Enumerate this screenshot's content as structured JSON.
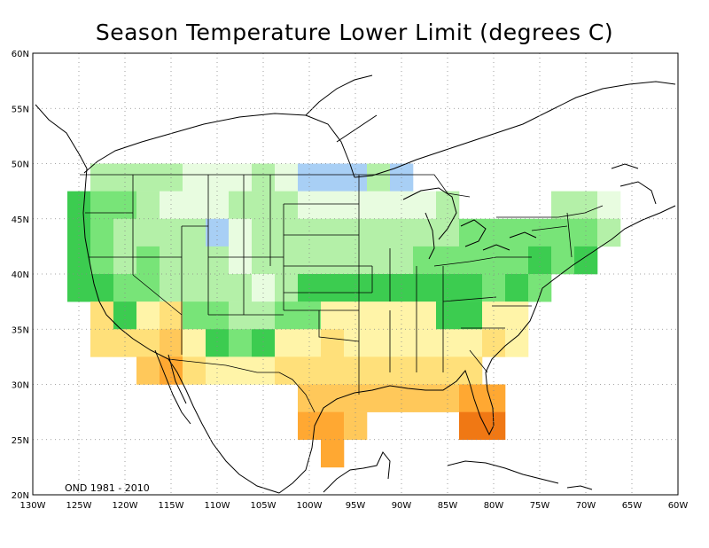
{
  "title": "Season Temperature Lower Limit (degrees C)",
  "period_label": "OND 1981 - 2010",
  "lon_labels": [
    "130W",
    "125W",
    "120W",
    "115W",
    "110W",
    "105W",
    "100W",
    "95W",
    "90W",
    "85W",
    "80W",
    "75W",
    "70W",
    "65W",
    "60W"
  ],
  "lat_labels": [
    "20N",
    "25N",
    "30N",
    "35N",
    "40N",
    "45N",
    "50N",
    "55N",
    "60N"
  ],
  "map_extent": {
    "lon_min": -130,
    "lon_max": -60,
    "lat_min": 20,
    "lat_max": 60
  },
  "grid_resolution_deg": 2.5,
  "colors": {
    "light_blue": "#a8cff5",
    "pale_green": "#e8fce0",
    "light_green": "#b4f0a8",
    "medium_green": "#78e478",
    "green": "#3ccc50",
    "light_yellow": "#fff4a8",
    "yellow": "#ffe07a",
    "light_orange": "#ffc85a",
    "orange": "#ffa832",
    "dark_orange": "#f07814"
  },
  "chart_data": {
    "type": "heatmap",
    "title": "Season Temperature Lower Limit (degrees C)",
    "annotation": "OND 1981 - 2010",
    "cell_size_deg": 2.5,
    "cells": [
      {
        "lon": -125.0,
        "lat": 46.25,
        "c": "green"
      },
      {
        "lon": -125.0,
        "lat": 43.75,
        "c": "green"
      },
      {
        "lon": -125.0,
        "lat": 41.25,
        "c": "green"
      },
      {
        "lon": -125.0,
        "lat": 38.75,
        "c": "green"
      },
      {
        "lon": -122.5,
        "lat": 48.75,
        "c": "light_green"
      },
      {
        "lon": -122.5,
        "lat": 46.25,
        "c": "medium_green"
      },
      {
        "lon": -122.5,
        "lat": 43.75,
        "c": "medium_green"
      },
      {
        "lon": -122.5,
        "lat": 41.25,
        "c": "medium_green"
      },
      {
        "lon": -122.5,
        "lat": 38.75,
        "c": "green"
      },
      {
        "lon": -122.5,
        "lat": 36.25,
        "c": "yellow"
      },
      {
        "lon": -122.5,
        "lat": 33.75,
        "c": "yellow"
      },
      {
        "lon": -120.0,
        "lat": 48.75,
        "c": "light_green"
      },
      {
        "lon": -120.0,
        "lat": 46.25,
        "c": "medium_green"
      },
      {
        "lon": -120.0,
        "lat": 43.75,
        "c": "light_green"
      },
      {
        "lon": -120.0,
        "lat": 41.25,
        "c": "light_green"
      },
      {
        "lon": -120.0,
        "lat": 38.75,
        "c": "medium_green"
      },
      {
        "lon": -120.0,
        "lat": 36.25,
        "c": "green"
      },
      {
        "lon": -120.0,
        "lat": 33.75,
        "c": "yellow"
      },
      {
        "lon": -117.5,
        "lat": 48.75,
        "c": "light_green"
      },
      {
        "lon": -117.5,
        "lat": 46.25,
        "c": "light_green"
      },
      {
        "lon": -117.5,
        "lat": 43.75,
        "c": "light_green"
      },
      {
        "lon": -117.5,
        "lat": 41.25,
        "c": "medium_green"
      },
      {
        "lon": -117.5,
        "lat": 38.75,
        "c": "medium_green"
      },
      {
        "lon": -117.5,
        "lat": 36.25,
        "c": "light_yellow"
      },
      {
        "lon": -117.5,
        "lat": 33.75,
        "c": "yellow"
      },
      {
        "lon": -117.5,
        "lat": 31.25,
        "c": "light_orange"
      },
      {
        "lon": -115.0,
        "lat": 48.75,
        "c": "light_green"
      },
      {
        "lon": -115.0,
        "lat": 46.25,
        "c": "pale_green"
      },
      {
        "lon": -115.0,
        "lat": 43.75,
        "c": "light_green"
      },
      {
        "lon": -115.0,
        "lat": 41.25,
        "c": "light_green"
      },
      {
        "lon": -115.0,
        "lat": 38.75,
        "c": "light_green"
      },
      {
        "lon": -115.0,
        "lat": 36.25,
        "c": "yellow"
      },
      {
        "lon": -115.0,
        "lat": 33.75,
        "c": "light_orange"
      },
      {
        "lon": -115.0,
        "lat": 31.25,
        "c": "orange"
      },
      {
        "lon": -112.5,
        "lat": 48.75,
        "c": "pale_green"
      },
      {
        "lon": -112.5,
        "lat": 46.25,
        "c": "pale_green"
      },
      {
        "lon": -112.5,
        "lat": 43.75,
        "c": "light_green"
      },
      {
        "lon": -112.5,
        "lat": 41.25,
        "c": "light_green"
      },
      {
        "lon": -112.5,
        "lat": 38.75,
        "c": "light_green"
      },
      {
        "lon": -112.5,
        "lat": 36.25,
        "c": "medium_green"
      },
      {
        "lon": -112.5,
        "lat": 33.75,
        "c": "light_yellow"
      },
      {
        "lon": -112.5,
        "lat": 31.25,
        "c": "yellow"
      },
      {
        "lon": -110.0,
        "lat": 48.75,
        "c": "pale_green"
      },
      {
        "lon": -110.0,
        "lat": 46.25,
        "c": "pale_green"
      },
      {
        "lon": -110.0,
        "lat": 43.75,
        "c": "light_blue"
      },
      {
        "lon": -110.0,
        "lat": 41.25,
        "c": "light_green"
      },
      {
        "lon": -110.0,
        "lat": 38.75,
        "c": "light_green"
      },
      {
        "lon": -110.0,
        "lat": 36.25,
        "c": "medium_green"
      },
      {
        "lon": -110.0,
        "lat": 33.75,
        "c": "green"
      },
      {
        "lon": -110.0,
        "lat": 31.25,
        "c": "light_yellow"
      },
      {
        "lon": -107.5,
        "lat": 48.75,
        "c": "pale_green"
      },
      {
        "lon": -107.5,
        "lat": 46.25,
        "c": "light_green"
      },
      {
        "lon": -107.5,
        "lat": 43.75,
        "c": "pale_green"
      },
      {
        "lon": -107.5,
        "lat": 41.25,
        "c": "pale_green"
      },
      {
        "lon": -107.5,
        "lat": 38.75,
        "c": "light_green"
      },
      {
        "lon": -107.5,
        "lat": 36.25,
        "c": "light_green"
      },
      {
        "lon": -107.5,
        "lat": 33.75,
        "c": "medium_green"
      },
      {
        "lon": -107.5,
        "lat": 31.25,
        "c": "light_yellow"
      },
      {
        "lon": -105.0,
        "lat": 48.75,
        "c": "light_green"
      },
      {
        "lon": -105.0,
        "lat": 46.25,
        "c": "light_green"
      },
      {
        "lon": -105.0,
        "lat": 43.75,
        "c": "light_green"
      },
      {
        "lon": -105.0,
        "lat": 41.25,
        "c": "light_green"
      },
      {
        "lon": -105.0,
        "lat": 38.75,
        "c": "pale_green"
      },
      {
        "lon": -105.0,
        "lat": 36.25,
        "c": "light_green"
      },
      {
        "lon": -105.0,
        "lat": 33.75,
        "c": "green"
      },
      {
        "lon": -105.0,
        "lat": 31.25,
        "c": "light_yellow"
      },
      {
        "lon": -102.5,
        "lat": 48.75,
        "c": "pale_green"
      },
      {
        "lon": -102.5,
        "lat": 46.25,
        "c": "light_green"
      },
      {
        "lon": -102.5,
        "lat": 43.75,
        "c": "light_green"
      },
      {
        "lon": -102.5,
        "lat": 41.25,
        "c": "light_green"
      },
      {
        "lon": -102.5,
        "lat": 38.75,
        "c": "light_green"
      },
      {
        "lon": -102.5,
        "lat": 36.25,
        "c": "medium_green"
      },
      {
        "lon": -102.5,
        "lat": 33.75,
        "c": "light_yellow"
      },
      {
        "lon": -102.5,
        "lat": 31.25,
        "c": "yellow"
      },
      {
        "lon": -100.0,
        "lat": 48.75,
        "c": "light_blue"
      },
      {
        "lon": -100.0,
        "lat": 46.25,
        "c": "pale_green"
      },
      {
        "lon": -100.0,
        "lat": 43.75,
        "c": "light_green"
      },
      {
        "lon": -100.0,
        "lat": 41.25,
        "c": "light_green"
      },
      {
        "lon": -100.0,
        "lat": 38.75,
        "c": "green"
      },
      {
        "lon": -100.0,
        "lat": 36.25,
        "c": "medium_green"
      },
      {
        "lon": -100.0,
        "lat": 33.75,
        "c": "light_yellow"
      },
      {
        "lon": -100.0,
        "lat": 31.25,
        "c": "yellow"
      },
      {
        "lon": -100.0,
        "lat": 28.75,
        "c": "light_orange"
      },
      {
        "lon": -100.0,
        "lat": 26.25,
        "c": "orange"
      },
      {
        "lon": -97.5,
        "lat": 48.75,
        "c": "light_blue"
      },
      {
        "lon": -97.5,
        "lat": 46.25,
        "c": "pale_green"
      },
      {
        "lon": -97.5,
        "lat": 43.75,
        "c": "light_green"
      },
      {
        "lon": -97.5,
        "lat": 41.25,
        "c": "light_green"
      },
      {
        "lon": -97.5,
        "lat": 38.75,
        "c": "green"
      },
      {
        "lon": -97.5,
        "lat": 36.25,
        "c": "light_yellow"
      },
      {
        "lon": -97.5,
        "lat": 33.75,
        "c": "yellow"
      },
      {
        "lon": -97.5,
        "lat": 31.25,
        "c": "yellow"
      },
      {
        "lon": -97.5,
        "lat": 28.75,
        "c": "light_orange"
      },
      {
        "lon": -97.5,
        "lat": 26.25,
        "c": "orange"
      },
      {
        "lon": -97.5,
        "lat": 23.75,
        "c": "orange"
      },
      {
        "lon": -95.0,
        "lat": 48.75,
        "c": "light_blue"
      },
      {
        "lon": -95.0,
        "lat": 46.25,
        "c": "pale_green"
      },
      {
        "lon": -95.0,
        "lat": 43.75,
        "c": "light_green"
      },
      {
        "lon": -95.0,
        "lat": 41.25,
        "c": "light_green"
      },
      {
        "lon": -95.0,
        "lat": 38.75,
        "c": "green"
      },
      {
        "lon": -95.0,
        "lat": 36.25,
        "c": "light_yellow"
      },
      {
        "lon": -95.0,
        "lat": 33.75,
        "c": "light_yellow"
      },
      {
        "lon": -95.0,
        "lat": 31.25,
        "c": "yellow"
      },
      {
        "lon": -95.0,
        "lat": 28.75,
        "c": "light_orange"
      },
      {
        "lon": -95.0,
        "lat": 26.25,
        "c": "light_orange"
      },
      {
        "lon": -92.5,
        "lat": 48.75,
        "c": "light_green"
      },
      {
        "lon": -92.5,
        "lat": 46.25,
        "c": "pale_green"
      },
      {
        "lon": -92.5,
        "lat": 43.75,
        "c": "light_green"
      },
      {
        "lon": -92.5,
        "lat": 41.25,
        "c": "light_green"
      },
      {
        "lon": -92.5,
        "lat": 38.75,
        "c": "green"
      },
      {
        "lon": -92.5,
        "lat": 36.25,
        "c": "light_yellow"
      },
      {
        "lon": -92.5,
        "lat": 33.75,
        "c": "light_yellow"
      },
      {
        "lon": -92.5,
        "lat": 31.25,
        "c": "yellow"
      },
      {
        "lon": -92.5,
        "lat": 28.75,
        "c": "light_orange"
      },
      {
        "lon": -90.0,
        "lat": 48.75,
        "c": "light_blue"
      },
      {
        "lon": -90.0,
        "lat": 46.25,
        "c": "pale_green"
      },
      {
        "lon": -90.0,
        "lat": 43.75,
        "c": "light_green"
      },
      {
        "lon": -90.0,
        "lat": 41.25,
        "c": "light_green"
      },
      {
        "lon": -90.0,
        "lat": 38.75,
        "c": "green"
      },
      {
        "lon": -90.0,
        "lat": 36.25,
        "c": "light_yellow"
      },
      {
        "lon": -90.0,
        "lat": 33.75,
        "c": "light_yellow"
      },
      {
        "lon": -90.0,
        "lat": 31.25,
        "c": "yellow"
      },
      {
        "lon": -90.0,
        "lat": 28.75,
        "c": "light_orange"
      },
      {
        "lon": -87.5,
        "lat": 46.25,
        "c": "pale_green"
      },
      {
        "lon": -87.5,
        "lat": 43.75,
        "c": "light_green"
      },
      {
        "lon": -87.5,
        "lat": 41.25,
        "c": "medium_green"
      },
      {
        "lon": -87.5,
        "lat": 38.75,
        "c": "green"
      },
      {
        "lon": -87.5,
        "lat": 36.25,
        "c": "light_yellow"
      },
      {
        "lon": -87.5,
        "lat": 33.75,
        "c": "light_yellow"
      },
      {
        "lon": -87.5,
        "lat": 31.25,
        "c": "yellow"
      },
      {
        "lon": -87.5,
        "lat": 28.75,
        "c": "light_orange"
      },
      {
        "lon": -85.0,
        "lat": 46.25,
        "c": "light_green"
      },
      {
        "lon": -85.0,
        "lat": 43.75,
        "c": "light_green"
      },
      {
        "lon": -85.0,
        "lat": 41.25,
        "c": "medium_green"
      },
      {
        "lon": -85.0,
        "lat": 38.75,
        "c": "green"
      },
      {
        "lon": -85.0,
        "lat": 36.25,
        "c": "green"
      },
      {
        "lon": -85.0,
        "lat": 33.75,
        "c": "light_yellow"
      },
      {
        "lon": -85.0,
        "lat": 31.25,
        "c": "yellow"
      },
      {
        "lon": -85.0,
        "lat": 28.75,
        "c": "light_orange"
      },
      {
        "lon": -82.5,
        "lat": 43.75,
        "c": "medium_green"
      },
      {
        "lon": -82.5,
        "lat": 41.25,
        "c": "medium_green"
      },
      {
        "lon": -82.5,
        "lat": 38.75,
        "c": "green"
      },
      {
        "lon": -82.5,
        "lat": 36.25,
        "c": "green"
      },
      {
        "lon": -82.5,
        "lat": 33.75,
        "c": "light_yellow"
      },
      {
        "lon": -82.5,
        "lat": 31.25,
        "c": "yellow"
      },
      {
        "lon": -82.5,
        "lat": 28.75,
        "c": "orange"
      },
      {
        "lon": -82.5,
        "lat": 26.25,
        "c": "dark_orange"
      },
      {
        "lon": -80.0,
        "lat": 43.75,
        "c": "medium_green"
      },
      {
        "lon": -80.0,
        "lat": 41.25,
        "c": "medium_green"
      },
      {
        "lon": -80.0,
        "lat": 38.75,
        "c": "medium_green"
      },
      {
        "lon": -80.0,
        "lat": 36.25,
        "c": "light_yellow"
      },
      {
        "lon": -80.0,
        "lat": 33.75,
        "c": "yellow"
      },
      {
        "lon": -80.0,
        "lat": 28.75,
        "c": "orange"
      },
      {
        "lon": -80.0,
        "lat": 26.25,
        "c": "dark_orange"
      },
      {
        "lon": -77.5,
        "lat": 43.75,
        "c": "medium_green"
      },
      {
        "lon": -77.5,
        "lat": 41.25,
        "c": "medium_green"
      },
      {
        "lon": -77.5,
        "lat": 38.75,
        "c": "green"
      },
      {
        "lon": -77.5,
        "lat": 36.25,
        "c": "light_yellow"
      },
      {
        "lon": -77.5,
        "lat": 33.75,
        "c": "light_yellow"
      },
      {
        "lon": -75.0,
        "lat": 43.75,
        "c": "medium_green"
      },
      {
        "lon": -75.0,
        "lat": 41.25,
        "c": "green"
      },
      {
        "lon": -75.0,
        "lat": 38.75,
        "c": "medium_green"
      },
      {
        "lon": -72.5,
        "lat": 46.25,
        "c": "light_green"
      },
      {
        "lon": -72.5,
        "lat": 43.75,
        "c": "medium_green"
      },
      {
        "lon": -72.5,
        "lat": 41.25,
        "c": "medium_green"
      },
      {
        "lon": -70.0,
        "lat": 46.25,
        "c": "light_green"
      },
      {
        "lon": -70.0,
        "lat": 43.75,
        "c": "medium_green"
      },
      {
        "lon": -70.0,
        "lat": 41.25,
        "c": "green"
      },
      {
        "lon": -67.5,
        "lat": 46.25,
        "c": "pale_green"
      },
      {
        "lon": -67.5,
        "lat": 43.75,
        "c": "light_green"
      }
    ]
  }
}
